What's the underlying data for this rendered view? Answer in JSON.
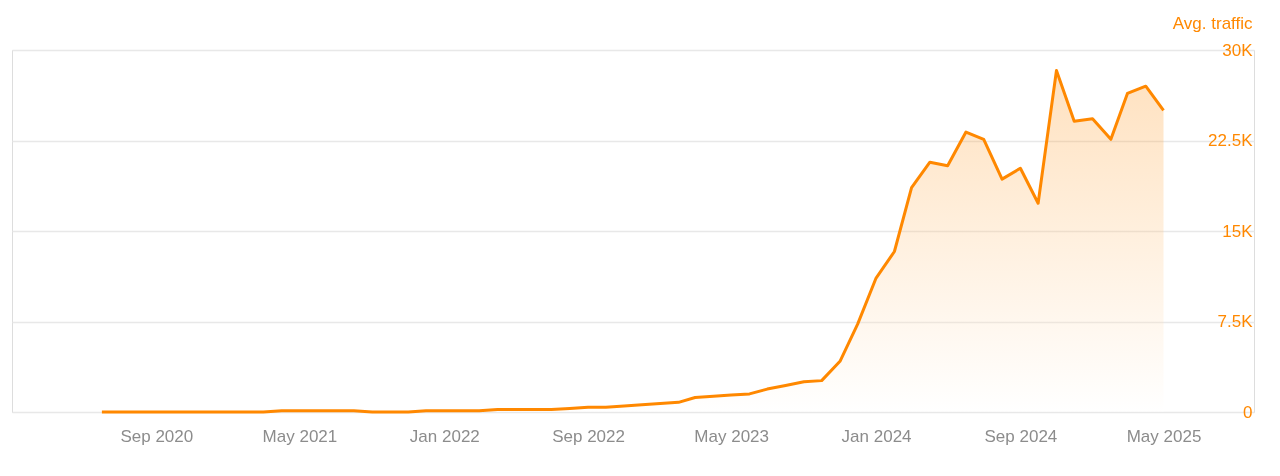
{
  "chart_data": {
    "type": "area",
    "ylabel": "Avg. traffic",
    "x": [
      "2020-06",
      "2020-07",
      "2020-08",
      "2020-09",
      "2020-10",
      "2020-11",
      "2020-12",
      "2021-01",
      "2021-02",
      "2021-03",
      "2021-04",
      "2021-05",
      "2021-06",
      "2021-07",
      "2021-08",
      "2021-09",
      "2021-10",
      "2021-11",
      "2021-12",
      "2022-01",
      "2022-02",
      "2022-03",
      "2022-04",
      "2022-05",
      "2022-06",
      "2022-07",
      "2022-08",
      "2022-09",
      "2022-10",
      "2022-11",
      "2022-12",
      "2023-01",
      "2023-02",
      "2023-03",
      "2023-04",
      "2023-05",
      "2023-06",
      "2023-07",
      "2023-08",
      "2023-09",
      "2023-10",
      "2023-11",
      "2023-12",
      "2024-01",
      "2024-02",
      "2024-03",
      "2024-04",
      "2024-05",
      "2024-06",
      "2024-07",
      "2024-08",
      "2024-09",
      "2024-10",
      "2024-11",
      "2024-12",
      "2025-01",
      "2025-02",
      "2025-03",
      "2025-04",
      "2025-05"
    ],
    "series": [
      {
        "color": "#ff8800",
        "values": [
          0,
          0,
          0,
          0,
          0,
          0,
          0,
          0,
          0,
          0,
          100,
          100,
          100,
          100,
          100,
          0,
          0,
          0,
          100,
          100,
          100,
          100,
          200,
          200,
          200,
          200,
          300,
          400,
          400,
          500,
          600,
          700,
          800,
          1200,
          1300,
          1400,
          1500,
          1900,
          2200,
          2500,
          2600,
          4200,
          7300,
          11100,
          13300,
          18600,
          20700,
          20400,
          23200,
          22600,
          19300,
          20200,
          17300,
          28300,
          24100,
          24300,
          22600,
          26400,
          27000,
          25000
        ]
      }
    ],
    "xlim": [
      "2020-01",
      "2025-10"
    ],
    "xticks": [
      {
        "value": "2020-09",
        "label": "Sep 2020"
      },
      {
        "value": "2021-05",
        "label": "May 2021"
      },
      {
        "value": "2022-01",
        "label": "Jan 2022"
      },
      {
        "value": "2022-09",
        "label": "Sep 2022"
      },
      {
        "value": "2023-05",
        "label": "May 2023"
      },
      {
        "value": "2024-01",
        "label": "Jan 2024"
      },
      {
        "value": "2024-09",
        "label": "Sep 2024"
      },
      {
        "value": "2025-05",
        "label": "May 2025"
      }
    ],
    "ylim": [
      0,
      30000
    ],
    "yticks": [
      0,
      {
        "value": 7500,
        "label": "7.5K"
      },
      {
        "value": 15000,
        "label": "15K"
      },
      {
        "value": 22500,
        "label": "22.5K"
      },
      {
        "value": 30000,
        "label": "30K"
      }
    ],
    "grid": "y",
    "marker": "none",
    "line_style": "solid"
  }
}
